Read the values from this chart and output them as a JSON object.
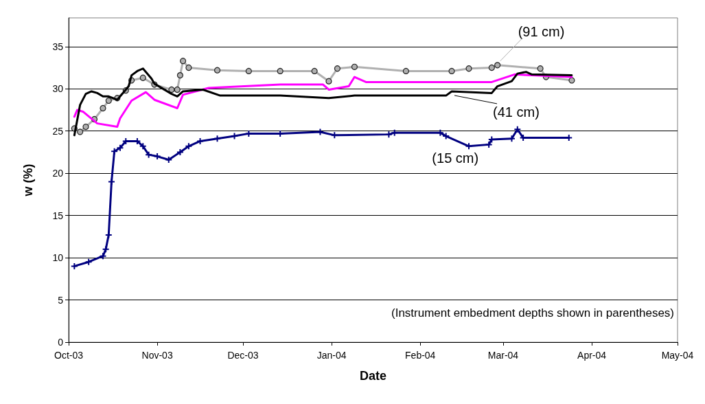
{
  "chart_data": {
    "type": "line",
    "xlabel": "Date",
    "ylabel": "w (%)",
    "xlim": [
      "2003-10-01",
      "2004-05-01"
    ],
    "xticks": [
      {
        "value": "2003-10-01",
        "label": "Oct-03"
      },
      {
        "value": "2003-11-01",
        "label": "Nov-03"
      },
      {
        "value": "2003-12-01",
        "label": "Dec-03"
      },
      {
        "value": "2004-01-01",
        "label": "Jan-04"
      },
      {
        "value": "2004-02-01",
        "label": "Feb-04"
      },
      {
        "value": "2004-03-01",
        "label": "Mar-04"
      },
      {
        "value": "2004-04-01",
        "label": "Apr-04"
      },
      {
        "value": "2004-05-01",
        "label": "May-04"
      }
    ],
    "ylim": [
      0,
      38.4
    ],
    "yticks": [
      0,
      5,
      10,
      15,
      20,
      25,
      30,
      35
    ],
    "grid": "y",
    "legend": false,
    "series": [
      {
        "name": "(91 cm)",
        "color": "#b0b0b0",
        "marker": "circle",
        "x": [
          "2003-10-03",
          "2003-10-05",
          "2003-10-07",
          "2003-10-10",
          "2003-10-13",
          "2003-10-15",
          "2003-10-18",
          "2003-10-21",
          "2003-10-23",
          "2003-10-27",
          "2003-10-31",
          "2003-11-06",
          "2003-11-08",
          "2003-11-09",
          "2003-11-10",
          "2003-11-12",
          "2003-11-22",
          "2003-12-03",
          "2003-12-14",
          "2003-12-26",
          "2003-12-31",
          "2004-01-03",
          "2004-01-09",
          "2004-01-27",
          "2004-02-12",
          "2004-02-18",
          "2004-02-26",
          "2004-02-28",
          "2004-03-14",
          "2004-03-16",
          "2004-03-25"
        ],
        "values": [
          25.3,
          24.9,
          25.5,
          26.4,
          27.7,
          28.6,
          28.9,
          29.8,
          31.0,
          31.3,
          30.5,
          29.9,
          29.9,
          31.6,
          33.3,
          32.5,
          32.2,
          32.1,
          32.1,
          32.1,
          30.9,
          32.4,
          32.6,
          32.1,
          32.1,
          32.4,
          32.5,
          32.8,
          32.4,
          31.4,
          31.0
        ]
      },
      {
        "color": "#ff00ff",
        "marker": "none",
        "x": [
          "2003-10-03",
          "2003-10-04",
          "2003-10-06",
          "2003-10-11",
          "2003-10-18",
          "2003-10-19",
          "2003-10-23",
          "2003-10-28",
          "2003-10-31",
          "2003-11-08",
          "2003-11-10",
          "2003-11-19",
          "2003-12-14",
          "2003-12-29",
          "2003-12-31",
          "2004-01-07",
          "2004-01-09",
          "2004-01-13",
          "2004-02-12",
          "2004-02-26",
          "2004-03-05",
          "2004-03-25"
        ],
        "values": [
          26.7,
          27.5,
          27.3,
          25.9,
          25.5,
          26.5,
          28.6,
          29.6,
          28.7,
          27.7,
          29.3,
          30.1,
          30.5,
          30.5,
          29.9,
          30.3,
          31.4,
          30.8,
          30.8,
          30.8,
          31.7,
          31.4
        ]
      },
      {
        "name": "(41 cm)",
        "color": "#000000",
        "marker": "none",
        "x": [
          "2003-10-03",
          "2003-10-05",
          "2003-10-07",
          "2003-10-09",
          "2003-10-11",
          "2003-10-13",
          "2003-10-15",
          "2003-10-18",
          "2003-10-22",
          "2003-10-23",
          "2003-10-25",
          "2003-10-27",
          "2003-10-30",
          "2003-10-31",
          "2003-11-06",
          "2003-11-08",
          "2003-11-10",
          "2003-11-17",
          "2003-11-23",
          "2003-12-14",
          "2003-12-31",
          "2004-01-09",
          "2004-02-10",
          "2004-02-12",
          "2004-02-26",
          "2004-02-28",
          "2004-03-04",
          "2004-03-06",
          "2004-03-09",
          "2004-03-11",
          "2004-03-25"
        ],
        "values": [
          24.5,
          28.1,
          29.4,
          29.7,
          29.5,
          29.1,
          29.1,
          28.7,
          30.3,
          31.6,
          32.1,
          32.4,
          31.2,
          30.6,
          29.4,
          29.1,
          29.7,
          29.9,
          29.2,
          29.2,
          28.9,
          29.2,
          29.2,
          29.7,
          29.5,
          30.3,
          30.9,
          31.8,
          32.0,
          31.7,
          31.6
        ]
      },
      {
        "name": "(15 cm)",
        "color": "#000080",
        "marker": "cross",
        "x": [
          "2003-10-03",
          "2003-10-08",
          "2003-10-13",
          "2003-10-14",
          "2003-10-15",
          "2003-10-16",
          "2003-10-17",
          "2003-10-19",
          "2003-10-21",
          "2003-10-25",
          "2003-10-27",
          "2003-10-29",
          "2003-11-01",
          "2003-11-05",
          "2003-11-09",
          "2003-11-12",
          "2003-11-16",
          "2003-11-22",
          "2003-11-28",
          "2003-12-03",
          "2003-12-14",
          "2003-12-28",
          "2004-01-02",
          "2004-01-21",
          "2004-01-23",
          "2004-02-08",
          "2004-02-10",
          "2004-02-18",
          "2004-02-25",
          "2004-02-26",
          "2004-03-04",
          "2004-03-06",
          "2004-03-08",
          "2004-03-24"
        ],
        "values": [
          9.0,
          9.5,
          10.2,
          11.0,
          12.7,
          19.0,
          22.6,
          23.0,
          23.8,
          23.8,
          23.2,
          22.2,
          22.0,
          21.6,
          22.5,
          23.2,
          23.8,
          24.1,
          24.4,
          24.7,
          24.7,
          24.9,
          24.5,
          24.6,
          24.8,
          24.8,
          24.4,
          23.2,
          23.4,
          24.0,
          24.1,
          25.2,
          24.2,
          24.2
        ]
      }
    ],
    "annotations": [
      "(Instrument embedment depths shown in parentheses)"
    ]
  }
}
